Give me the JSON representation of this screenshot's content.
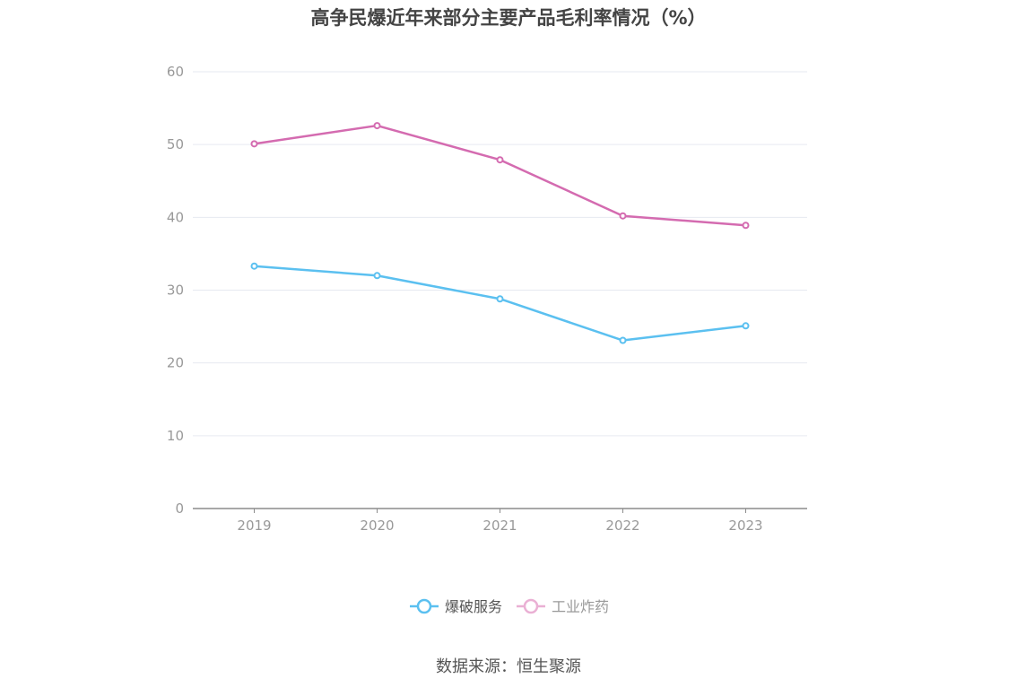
{
  "chart_data": {
    "type": "line",
    "title": "高争民爆近年来部分主要产品毛利率情况（%）",
    "categories": [
      "2019",
      "2020",
      "2021",
      "2022",
      "2023"
    ],
    "ylim": [
      0,
      60
    ],
    "yticks": [
      "0",
      "10",
      "20",
      "30",
      "40",
      "50",
      "60"
    ],
    "grid": true,
    "legend_position": "bottom",
    "series": [
      {
        "name": "爆破服务",
        "values": [
          33.3,
          32.0,
          28.8,
          23.1,
          25.1
        ],
        "color": "#5bc0f0"
      },
      {
        "name": "工业炸药",
        "values": [
          50.1,
          52.6,
          47.9,
          40.2,
          38.9
        ],
        "color": "#d46bb0"
      }
    ],
    "legend_inactive_color": "#eab0d4",
    "source": "数据来源：恒生聚源"
  }
}
